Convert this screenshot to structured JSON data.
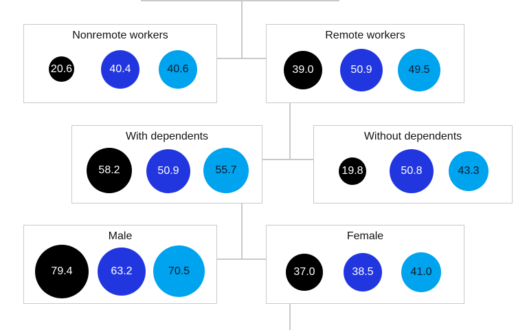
{
  "colors": {
    "black": "#000000",
    "blue": "#2236e0",
    "cyan": "#00a3ee",
    "lines": "#c9c9c9"
  },
  "groups": [
    {
      "label": "Nonremote workers",
      "values": [
        "20.6",
        "40.4",
        "40.6"
      ]
    },
    {
      "label": "Remote workers",
      "values": [
        "39.0",
        "50.9",
        "49.5"
      ]
    },
    {
      "label": "With dependents",
      "values": [
        "58.2",
        "50.9",
        "55.7"
      ]
    },
    {
      "label": "Without dependents",
      "values": [
        "19.8",
        "50.8",
        "43.3"
      ]
    },
    {
      "label": "Male",
      "values": [
        "79.4",
        "63.2",
        "70.5"
      ]
    },
    {
      "label": "Female",
      "values": [
        "37.0",
        "38.5",
        "41.0"
      ]
    }
  ]
}
